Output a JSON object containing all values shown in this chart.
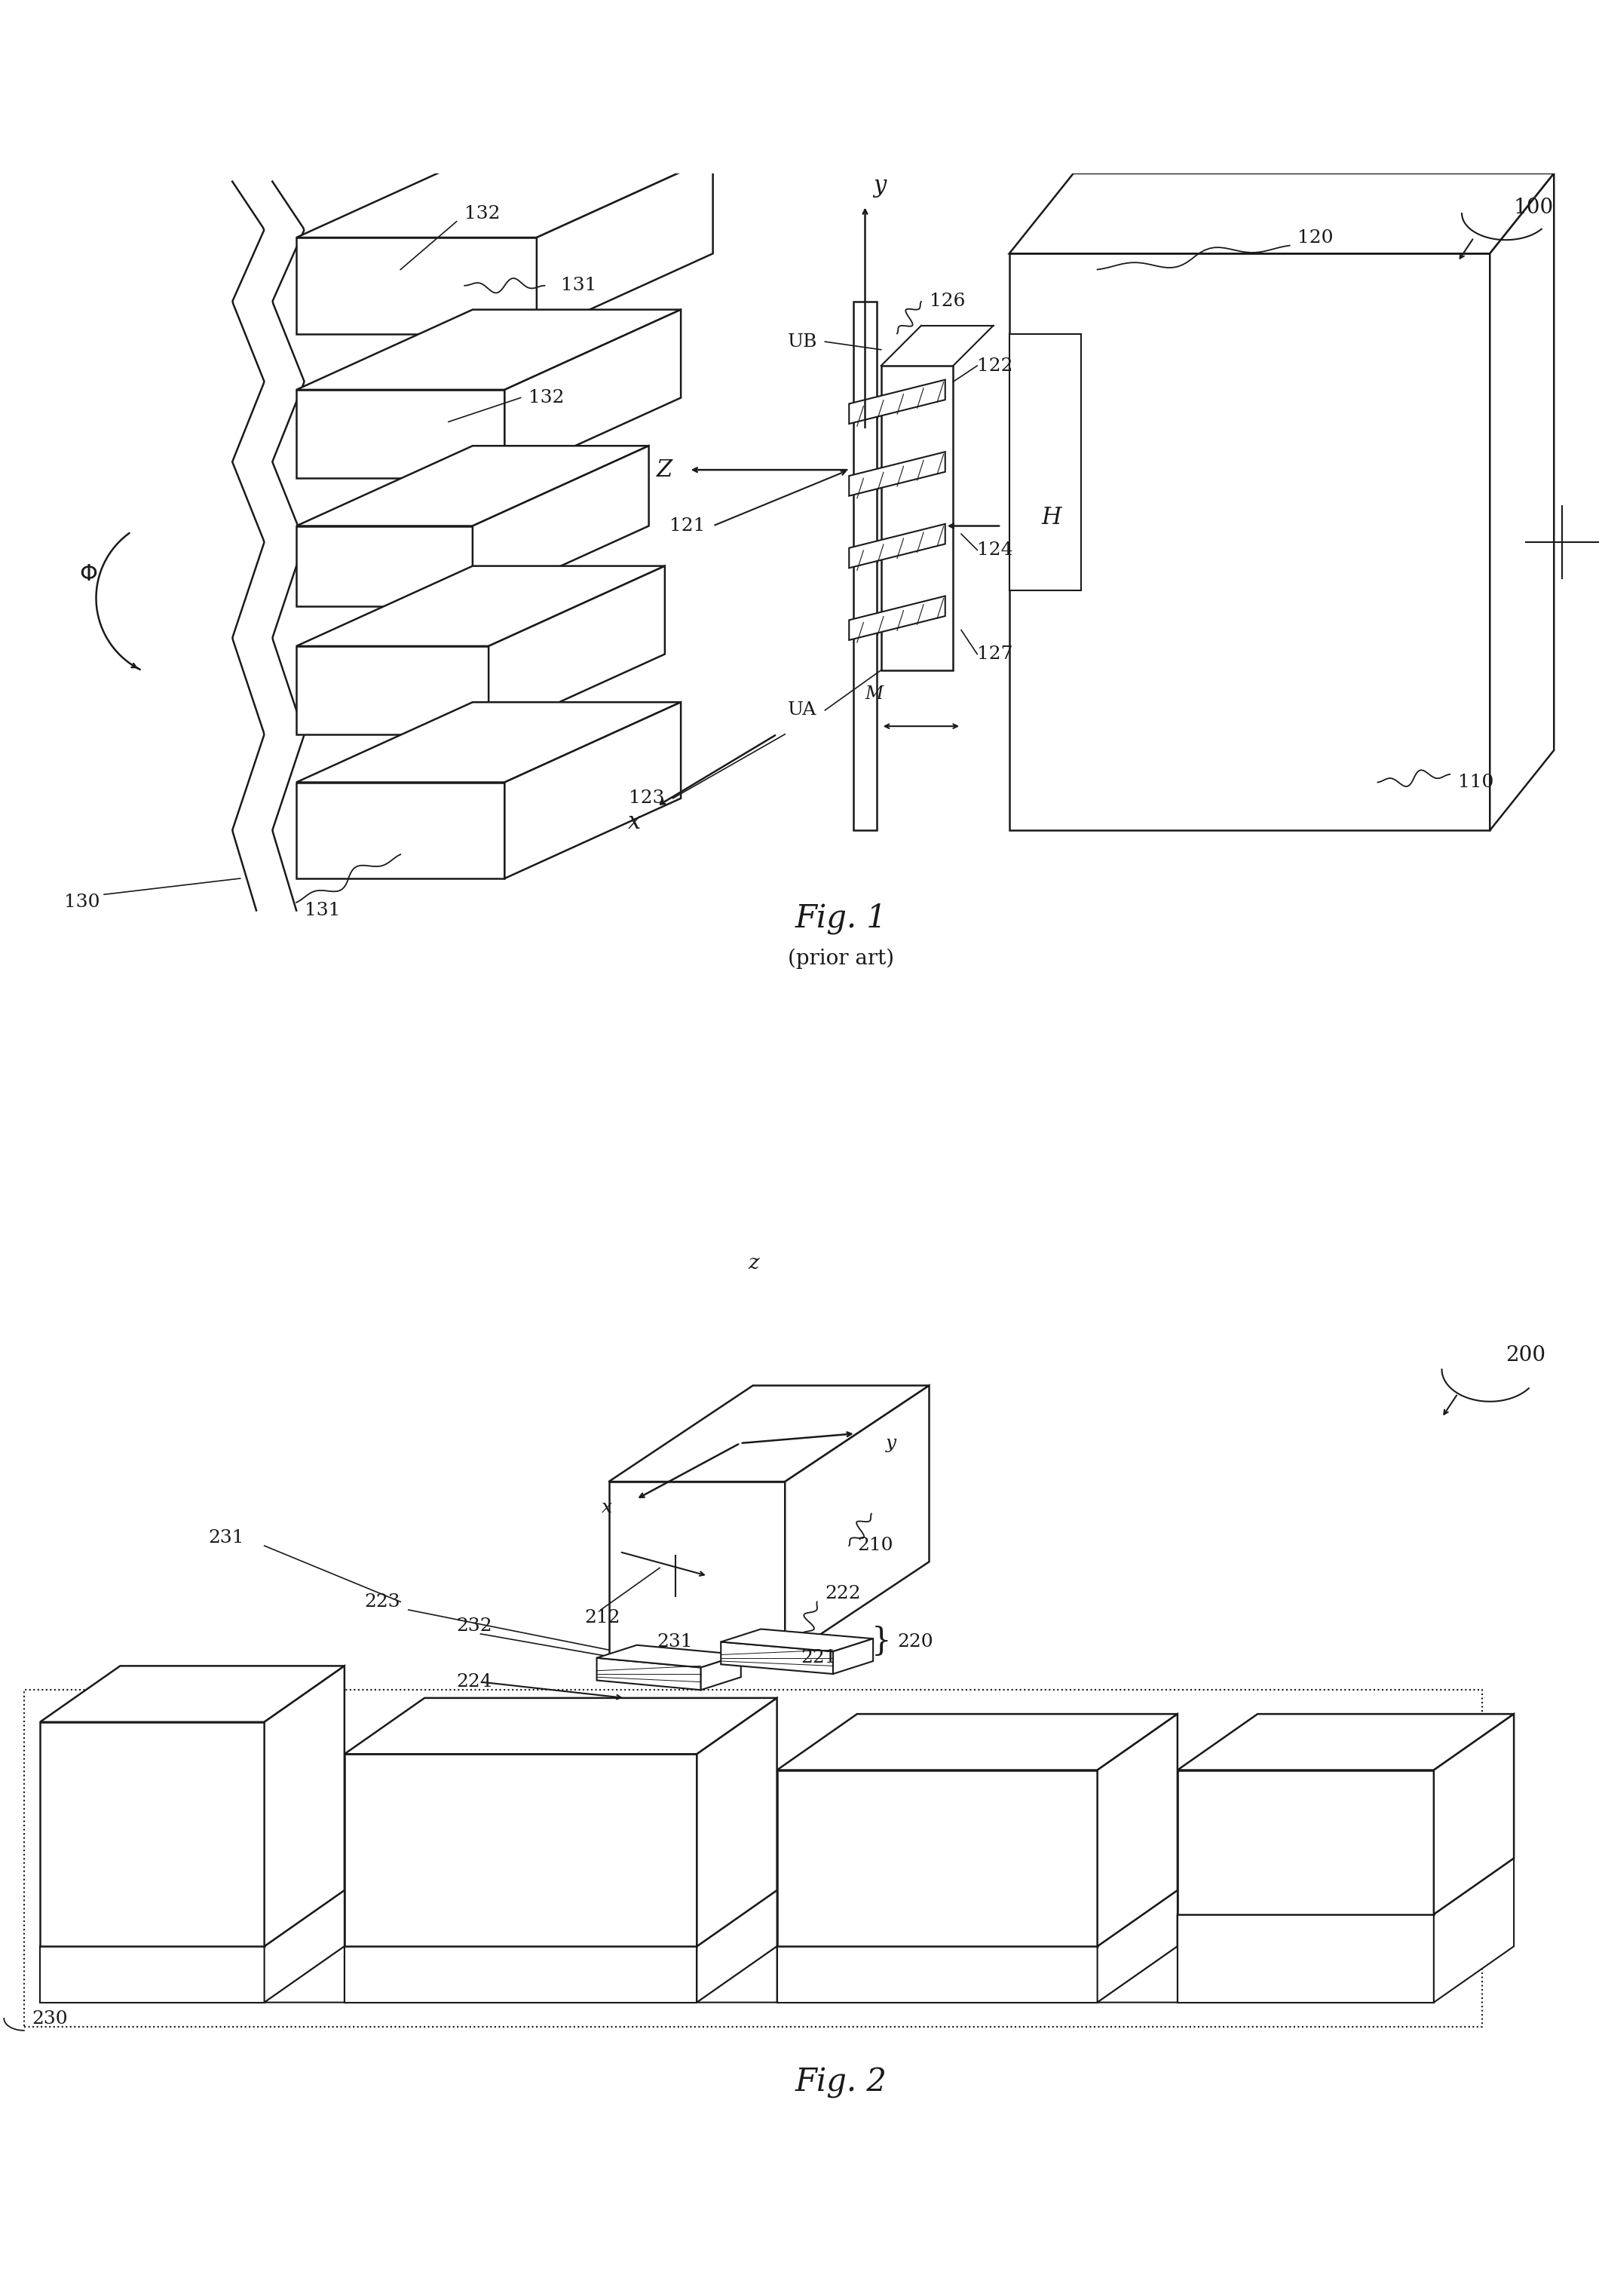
{
  "bg_color": "#ffffff",
  "lc": "#1a1a1a",
  "lw": 1.8,
  "fig1_title": "Fig. 1",
  "fig1_subtitle": "(prior art)",
  "fig2_title": "Fig. 2",
  "ref100": "100",
  "ref200": "200"
}
